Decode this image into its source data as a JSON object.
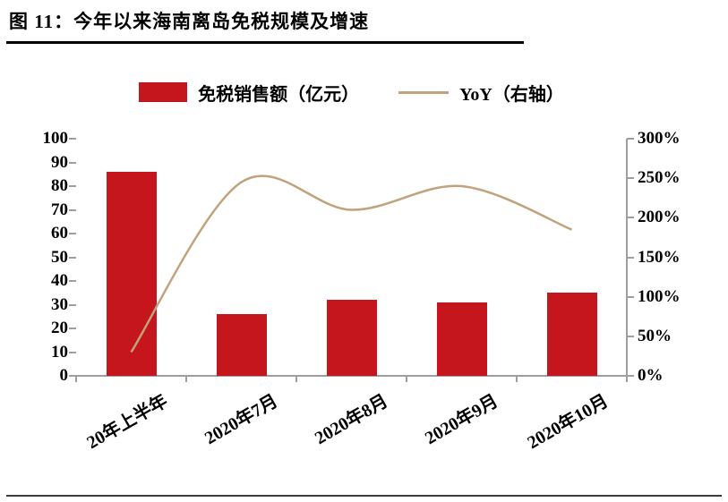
{
  "title": "图 11：今年以来海南离岛免税规模及增速",
  "legend": {
    "bar_label": "免税销售额（亿元）",
    "line_label": "YoY（右轴）"
  },
  "colors": {
    "bar": "#c5161d",
    "line": "#c2a27c",
    "axis": "#9e9e9e",
    "title_rule": "#000000"
  },
  "chart_data": {
    "type": "bar",
    "subtype": "bar+line-dual-axis",
    "title": "图 11：今年以来海南离岛免税规模及增速",
    "categories": [
      "20年上半年",
      "2020年7月",
      "2020年8月",
      "2020年9月",
      "2020年10月"
    ],
    "series": [
      {
        "name": "免税销售额（亿元）",
        "type": "bar",
        "axis": "left",
        "values": [
          86,
          26,
          32,
          31,
          35
        ]
      },
      {
        "name": "YoY（右轴）",
        "type": "line",
        "axis": "right",
        "values": [
          30,
          245,
          210,
          240,
          185
        ]
      }
    ],
    "left_axis": {
      "min": 0,
      "max": 100,
      "step": 10,
      "tick_labels": [
        "100",
        "90",
        "80",
        "70",
        "60",
        "50",
        "40",
        "30",
        "20",
        "10",
        "0"
      ]
    },
    "right_axis": {
      "min": 0,
      "max": 300,
      "step": 50,
      "unit": "%",
      "tick_labels": [
        "300%",
        "250%",
        "200%",
        "150%",
        "100%",
        "50%",
        "0%"
      ]
    },
    "grid": false,
    "legend_position": "top"
  }
}
